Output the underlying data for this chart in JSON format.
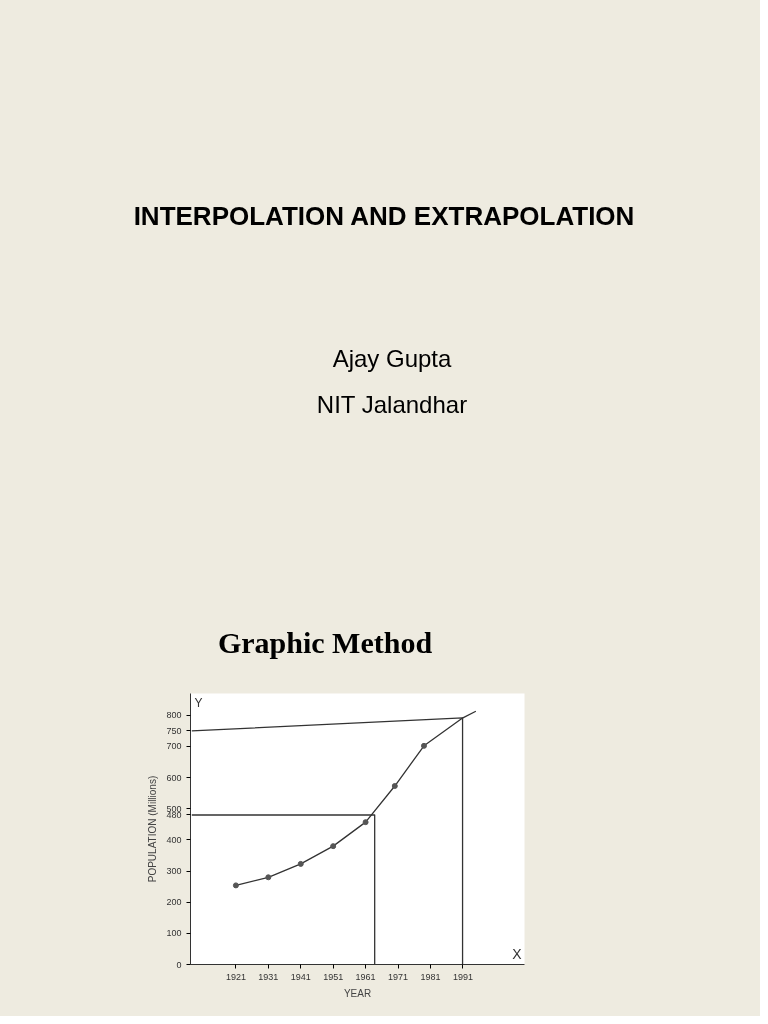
{
  "chart_data": {
    "type": "line",
    "title": "INTERPOLATION AND EXTRAPOLATION",
    "subtitle": "Ajay Gupta\nNIT Jalandhar",
    "annotations": [
      "Graphic Method",
      "Y",
      "X"
    ],
    "xlabel": "YEAR",
    "ylabel": "POPULATION (Millions)",
    "xlim": [
      1907,
      2010
    ],
    "ylim": [
      0,
      870
    ],
    "xticks": [
      1921,
      1931,
      1941,
      1951,
      1961,
      1971,
      1981,
      1991
    ],
    "yticks": [
      0,
      100,
      200,
      300,
      400,
      480,
      500,
      600,
      700,
      750,
      800
    ],
    "grid": false,
    "series": [
      {
        "marker": "none",
        "color": "#333333",
        "x": [
          1921,
          1931,
          1941,
          1951,
          1961,
          1970,
          1979,
          1991,
          1995
        ],
        "values": [
          254,
          280,
          323,
          380,
          457,
          573,
          702,
          792,
          813
        ]
      },
      {
        "type": "scatter",
        "marker": "circle",
        "color": "#555555",
        "x": [
          1921,
          1931,
          1941,
          1951,
          1961,
          1970,
          1979
        ],
        "values": [
          254,
          280,
          323,
          380,
          457,
          573,
          702
        ]
      },
      {
        "marker": "none",
        "color": "#333333",
        "x": [
          1907.4,
          1963.8,
          1963.8
        ],
        "values": [
          480,
          480,
          0
        ]
      },
      {
        "marker": "none",
        "color": "#333333",
        "x": [
          1907.4,
          1990.9,
          1990.9
        ],
        "values": [
          750,
          792,
          0
        ]
      }
    ]
  }
}
